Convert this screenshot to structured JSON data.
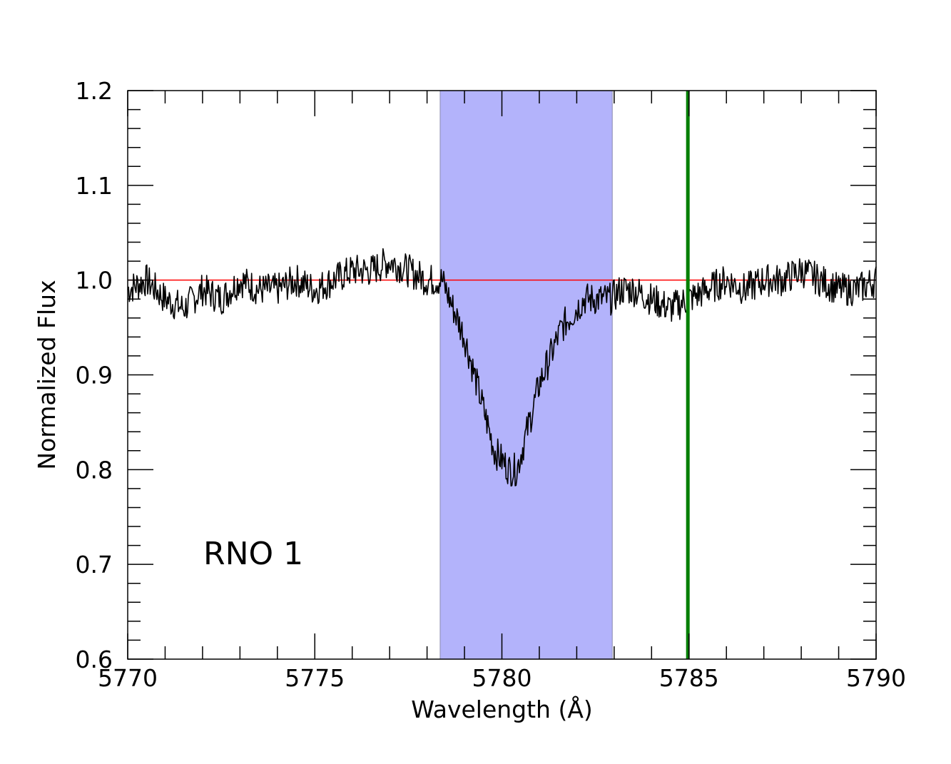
{
  "chart_data": {
    "type": "line",
    "xlabel": "Wavelength (Å)",
    "ylabel": "Normalized Flux",
    "annotation": "RNO 1",
    "xlim": [
      5770,
      5790
    ],
    "ylim": [
      0.6,
      1.2
    ],
    "x_ticks": [
      5770,
      5775,
      5780,
      5785,
      5790
    ],
    "x_tick_labels": [
      "5770",
      "5775",
      "5780",
      "5785",
      "5790"
    ],
    "y_ticks": [
      0.6,
      0.7,
      0.8,
      0.9,
      1.0,
      1.1,
      1.2
    ],
    "y_tick_labels": [
      "0.6",
      "0.7",
      "0.8",
      "0.9",
      "1.0",
      "1.1",
      "1.2"
    ],
    "shaded_band": {
      "x_start": 5778.35,
      "x_end": 5782.95,
      "color": "#b3b3fb"
    },
    "reference_hline": {
      "y": 1.0,
      "color": "#ff0000"
    },
    "reference_vline": {
      "x": 5784.97,
      "color": "#007f00"
    },
    "series": [
      {
        "color": "#000000",
        "x": [
          5770.0,
          5770.5,
          5771.0,
          5771.5,
          5772.0,
          5772.5,
          5773.0,
          5773.5,
          5774.0,
          5774.5,
          5775.0,
          5775.5,
          5776.0,
          5776.5,
          5777.0,
          5777.5,
          5778.0,
          5778.4,
          5778.6,
          5778.8,
          5779.0,
          5779.2,
          5779.4,
          5779.6,
          5779.8,
          5780.0,
          5780.2,
          5780.4,
          5780.6,
          5780.8,
          5781.0,
          5781.2,
          5781.4,
          5781.6,
          5781.8,
          5782.0,
          5782.2,
          5782.4,
          5782.6,
          5782.9,
          5783.2,
          5783.5,
          5784.0,
          5784.5,
          5785.0,
          5785.5,
          5786.0,
          5786.5,
          5787.0,
          5787.5,
          5788.0,
          5788.5,
          5789.0,
          5789.5,
          5790.0
        ],
        "y": [
          0.99,
          1.0,
          0.98,
          0.97,
          0.99,
          0.98,
          1.0,
          0.99,
          0.99,
          1.0,
          0.99,
          1.0,
          1.01,
          1.01,
          1.02,
          1.01,
          1.0,
          1.0,
          0.98,
          0.96,
          0.94,
          0.91,
          0.88,
          0.85,
          0.82,
          0.81,
          0.8,
          0.8,
          0.83,
          0.86,
          0.89,
          0.91,
          0.93,
          0.95,
          0.96,
          0.97,
          0.98,
          0.98,
          0.98,
          0.98,
          0.99,
          0.99,
          0.98,
          0.97,
          0.98,
          0.99,
          1.0,
          0.99,
          1.0,
          1.0,
          1.01,
          1.0,
          0.99,
          0.99,
          1.0
        ]
      }
    ]
  }
}
